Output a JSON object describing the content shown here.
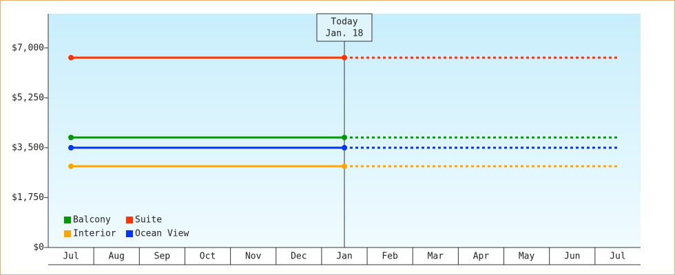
{
  "chart_data": {
    "type": "line",
    "categories": [
      "Jul",
      "Aug",
      "Sep",
      "Oct",
      "Nov",
      "Dec",
      "Jan",
      "Feb",
      "Mar",
      "Apr",
      "May",
      "Jun",
      "Jul"
    ],
    "series": [
      {
        "name": "Balcony",
        "color": "#009900",
        "values": [
          3860,
          3860,
          3860,
          3860,
          3860,
          3860,
          3860,
          3860,
          3860,
          3860,
          3860,
          3860,
          3860
        ]
      },
      {
        "name": "Suite",
        "color": "#ff3300",
        "values": [
          6660,
          6660,
          6660,
          6660,
          6660,
          6660,
          6660,
          6660,
          6660,
          6660,
          6660,
          6660,
          6660
        ]
      },
      {
        "name": "Interior",
        "color": "#ffa500",
        "values": [
          2850,
          2850,
          2850,
          2850,
          2850,
          2850,
          2850,
          2850,
          2850,
          2850,
          2850,
          2850,
          2850
        ]
      },
      {
        "name": "Ocean View",
        "color": "#0033ff",
        "values": [
          3500,
          3500,
          3500,
          3500,
          3500,
          3500,
          3500,
          3500,
          3500,
          3500,
          3500,
          3500,
          3500
        ]
      }
    ],
    "annotation": {
      "lines": [
        "Today",
        "Jan. 18"
      ],
      "at": "Jan"
    },
    "ylim": [
      0,
      8200
    ],
    "yticks": [
      {
        "value": 0,
        "label": "$0"
      },
      {
        "value": 1750,
        "label": "$1,750"
      },
      {
        "value": 3500,
        "label": "$3,500"
      },
      {
        "value": 5250,
        "label": "$5,250"
      },
      {
        "value": 7000,
        "label": "$7,000"
      }
    ],
    "legend": "lower left"
  }
}
